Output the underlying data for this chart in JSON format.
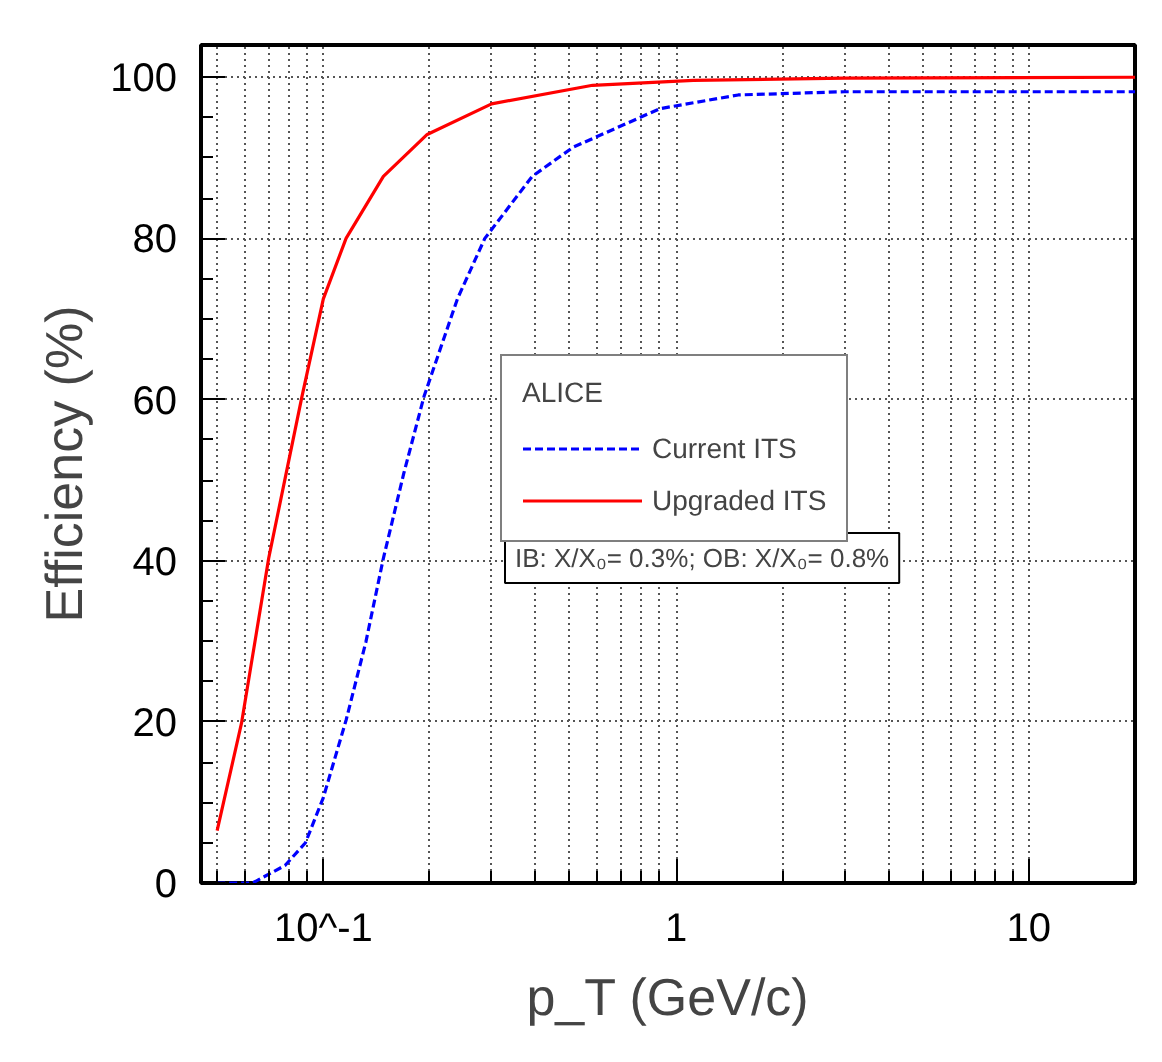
{
  "chart_data": {
    "type": "line",
    "xlabel": "p_T (GeV/c)",
    "ylabel": "Efficiency (%)",
    "legend_title": "ALICE",
    "annotations": [
      "IB: X/X₀= 0.3%; OB: X/X₀= 0.8%"
    ],
    "log": "x",
    "xlim": [
      0.045,
      20
    ],
    "ylim": [
      0,
      104
    ],
    "xticks": [
      {
        "value": 0.1,
        "label": "10^-1"
      },
      1,
      10
    ],
    "yticks": [
      0,
      20,
      40,
      60,
      80,
      100
    ],
    "grid": true,
    "legend": "right",
    "marker": "none",
    "series": [
      {
        "name": "Current ITS",
        "color": "#0000ff",
        "line_style": "dashed",
        "x": [
          0.05,
          0.063,
          0.078,
          0.089,
          0.1,
          0.116,
          0.132,
          0.148,
          0.169,
          0.193,
          0.24,
          0.287,
          0.391,
          0.51,
          0.9,
          1.5,
          3,
          20
        ],
        "values": [
          0,
          0,
          2.2,
          5,
          10.6,
          20.2,
          29.9,
          40.3,
          50.8,
          60.4,
          72.5,
          80,
          87.7,
          91.3,
          96.1,
          97.8,
          98.2,
          98.2
        ]
      },
      {
        "name": "Upgraded ITS",
        "color": "#ff0000",
        "line_style": "solid",
        "x": [
          0.05,
          0.0586,
          0.07,
          0.087,
          0.1,
          0.116,
          0.148,
          0.197,
          0.3,
          0.58,
          1.12,
          3,
          20
        ],
        "values": [
          6.5,
          19.8,
          40.3,
          60.4,
          72.5,
          80,
          87.7,
          92.9,
          96.7,
          99,
          99.6,
          99.9,
          100
        ]
      }
    ]
  }
}
